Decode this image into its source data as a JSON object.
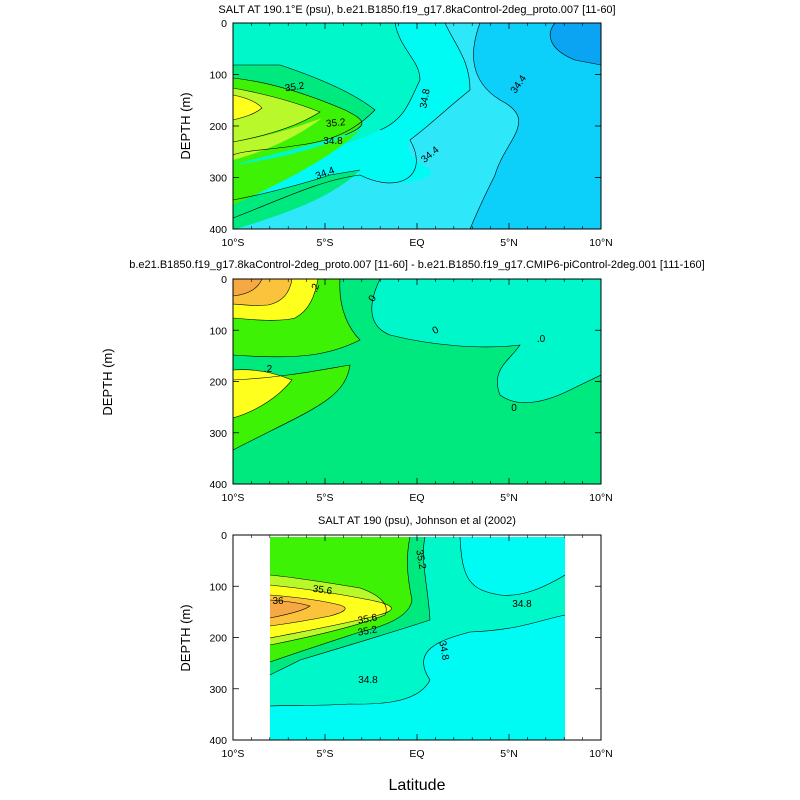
{
  "chart_data": [
    {
      "type": "contour",
      "title": "SALT AT 190.1°E (psu), b.e21.B1850.f19_g17.8kaControl-2deg_proto.007 [11-60]",
      "ylabel": "DEPTH (m)",
      "xlabel": "",
      "x_ticks": [
        "10°S",
        "5°S",
        "EQ",
        "5°N",
        "10°N"
      ],
      "y_ticks": [
        "0",
        "100",
        "200",
        "300",
        "400"
      ],
      "xlim": [
        -10,
        10
      ],
      "ylim": [
        400,
        0
      ],
      "contour_labels": [
        "35.2",
        "35.2",
        "34.8",
        "34.4",
        "34.8",
        "34.4",
        "34.4"
      ]
    },
    {
      "type": "contour",
      "title": "b.e21.B1850.f19_g17.8kaControl-2deg_proto.007 [11-60] - b.e21.B1850.f19_g17.CMIP6-piControl-2deg.001 [111-160]",
      "ylabel": "DEPTH (m)",
      "xlabel": "",
      "x_ticks": [
        "10°S",
        "5°S",
        "EQ",
        "5°N",
        "10°N"
      ],
      "y_ticks": [
        "0",
        "100",
        "200",
        "300",
        "400"
      ],
      "xlim": [
        -10,
        10
      ],
      "ylim": [
        400,
        0
      ],
      "contour_labels": [
        ".2",
        "0",
        "0",
        ".0",
        ".2",
        "0"
      ]
    },
    {
      "type": "contour",
      "title": "SALT AT 190 (psu), Johnson et al (2002)",
      "ylabel": "DEPTH (m)",
      "xlabel": "Latitude",
      "x_ticks": [
        "10°S",
        "5°S",
        "EQ",
        "5°N",
        "10°N"
      ],
      "y_ticks": [
        "0",
        "100",
        "200",
        "300",
        "400"
      ],
      "xlim": [
        -10,
        10
      ],
      "ylim": [
        400,
        0
      ],
      "contour_labels": [
        "35.2",
        "35.6",
        "36",
        "35.6",
        "35.2",
        "34.8",
        "34.8",
        "34.8"
      ]
    }
  ],
  "colors": {
    "orange": "#f5a844",
    "gold": "#fbc33b",
    "yellow": "#ffff1e",
    "yellowgreen": "#b9f82b",
    "green": "#3ef205",
    "springgreen": "#00e97e",
    "aquamarine": "#00f7c9",
    "cyan": "#00fbf5",
    "aqua": "#2ee8fa",
    "sky": "#0cd0fa",
    "blue": "#0ba4f2",
    "white": "#ffffff"
  }
}
